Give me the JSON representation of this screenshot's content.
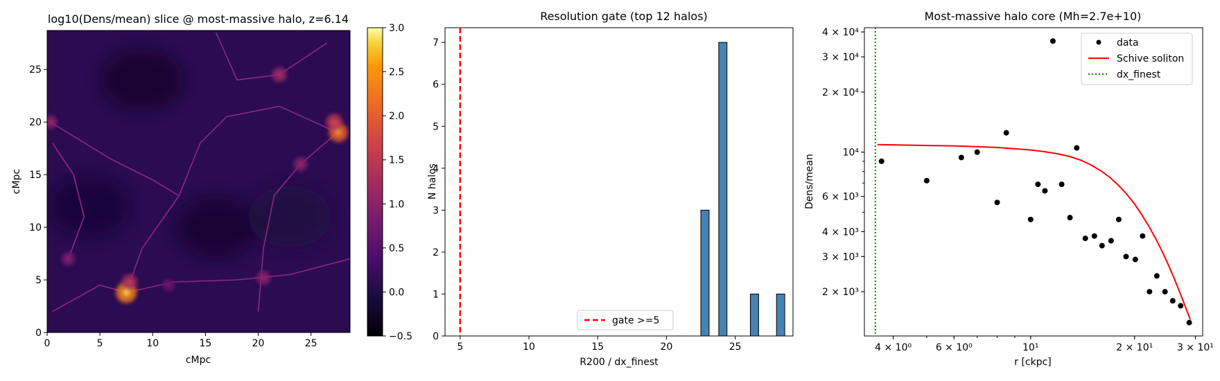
{
  "chart_data": [
    {
      "type": "heatmap",
      "title": "log10(Dens/mean) slice @ most-massive halo, z=6.14",
      "xlabel": "cMpc",
      "ylabel": "cMpc",
      "xlim": [
        0,
        28.7
      ],
      "ylim": [
        0,
        28.7
      ],
      "xticks": [
        0,
        5,
        10,
        15,
        20,
        25
      ],
      "yticks": [
        0,
        5,
        10,
        15,
        20,
        25
      ],
      "colorbar": {
        "colormap": "inferno",
        "range": [
          -0.5,
          3.0
        ],
        "ticks": [
          -0.5,
          0.0,
          0.5,
          1.0,
          1.5,
          2.0,
          2.5,
          3.0
        ],
        "tick_labels": [
          "−0.5",
          "0.0",
          "0.5",
          "1.0",
          "1.5",
          "2.0",
          "2.5",
          "3.0"
        ]
      },
      "background_color": "#2b0b52",
      "bright_spots": [
        {
          "x": 7.5,
          "y": 3.8,
          "value": 2.6
        },
        {
          "x": 7.8,
          "y": 4.8,
          "value": 1.4
        },
        {
          "x": 27.6,
          "y": 19.0,
          "value": 2.2
        },
        {
          "x": 27.2,
          "y": 20.0,
          "value": 1.6
        },
        {
          "x": 22.0,
          "y": 24.5,
          "value": 1.2
        },
        {
          "x": 20.5,
          "y": 5.2,
          "value": 1.0
        },
        {
          "x": 2.0,
          "y": 7.0,
          "value": 0.9
        },
        {
          "x": 0.3,
          "y": 20.0,
          "value": 1.0
        },
        {
          "x": 24.0,
          "y": 16.0,
          "value": 1.0
        },
        {
          "x": 11.5,
          "y": 4.5,
          "value": 0.7
        }
      ],
      "filaments": [
        [
          [
            0.5,
            2.0
          ],
          [
            5.0,
            4.5
          ],
          [
            7.5,
            3.8
          ],
          [
            12.0,
            4.8
          ],
          [
            18.0,
            5.0
          ],
          [
            23.0,
            5.5
          ],
          [
            28.7,
            7.0
          ]
        ],
        [
          [
            7.5,
            3.8
          ],
          [
            9.0,
            8.0
          ],
          [
            12.5,
            13.0
          ],
          [
            14.5,
            18.0
          ],
          [
            17.0,
            20.5
          ],
          [
            22.0,
            21.5
          ],
          [
            27.5,
            19.0
          ]
        ],
        [
          [
            0.3,
            20.0
          ],
          [
            6.0,
            16.5
          ],
          [
            10.0,
            14.5
          ],
          [
            12.5,
            13.0
          ]
        ],
        [
          [
            20.0,
            2.0
          ],
          [
            20.5,
            8.0
          ],
          [
            21.5,
            13.0
          ],
          [
            24.0,
            16.0
          ],
          [
            27.5,
            19.0
          ]
        ],
        [
          [
            16.0,
            28.5
          ],
          [
            18.0,
            24.0
          ],
          [
            22.0,
            24.5
          ],
          [
            26.5,
            27.5
          ]
        ],
        [
          [
            2.0,
            7.0
          ],
          [
            3.5,
            11.0
          ],
          [
            2.5,
            15.0
          ],
          [
            0.5,
            18.0
          ]
        ]
      ],
      "voids": [
        {
          "x": 9.0,
          "y": 24.0,
          "value": -0.3
        },
        {
          "x": 4.0,
          "y": 12.0,
          "value": -0.2
        },
        {
          "x": 16.0,
          "y": 10.0,
          "value": -0.25
        },
        {
          "x": 23.0,
          "y": 11.0,
          "value": -0.15
        }
      ]
    },
    {
      "type": "bar",
      "title": "Resolution gate (top 12 halos)",
      "xlabel": "R200 / dx_finest",
      "ylabel": "N halos",
      "xlim": [
        3.9,
        29.2
      ],
      "ylim": [
        0,
        7.35
      ],
      "xticks": [
        5,
        10,
        15,
        20,
        25
      ],
      "yticks": [
        0,
        1,
        2,
        3,
        4,
        5,
        6,
        7
      ],
      "bars": [
        {
          "x0": 22.5,
          "x1": 23.1,
          "value": 3
        },
        {
          "x0": 23.8,
          "x1": 24.4,
          "value": 7
        },
        {
          "x0": 26.1,
          "x1": 26.7,
          "value": 1
        },
        {
          "x0": 28.0,
          "x1": 28.6,
          "value": 1
        }
      ],
      "bar_color": "#4682b4",
      "vline": {
        "x": 5,
        "color": "#ff0000",
        "style": "dashed"
      },
      "legend": {
        "entries": [
          "gate >=5"
        ],
        "placement": "lower-center"
      }
    },
    {
      "type": "scatter",
      "title": "Most-massive halo core (Mh=2.7e+10)",
      "xlabel": "r [ckpc]",
      "ylabel": "Dens/mean",
      "xscale": "log",
      "yscale": "log",
      "xlim": [
        3.3,
        31.5
      ],
      "ylim": [
        1200,
        42000
      ],
      "xticks": [
        {
          "value": 4,
          "label": "4 × 10⁰"
        },
        {
          "value": 6,
          "label": "6 × 10⁰"
        },
        {
          "value": 10,
          "label": "10¹"
        },
        {
          "value": 20,
          "label": "2 × 10¹"
        },
        {
          "value": 30,
          "label": "3 × 10¹"
        }
      ],
      "yticks": [
        {
          "value": 2000,
          "label": "2 × 10³"
        },
        {
          "value": 3000,
          "label": "3 × 10³"
        },
        {
          "value": 4000,
          "label": "4 × 10³"
        },
        {
          "value": 6000,
          "label": "6 × 10³"
        },
        {
          "value": 10000,
          "label": "10⁴"
        },
        {
          "value": 20000,
          "label": "2 × 10⁴"
        },
        {
          "value": 30000,
          "label": "3 × 10⁴"
        },
        {
          "value": 40000,
          "label": "4 × 10⁴"
        }
      ],
      "series": [
        {
          "name": "data",
          "kind": "points",
          "color": "#000000",
          "x": [
            3.7,
            5.0,
            6.3,
            7.0,
            8.0,
            8.5,
            10.0,
            10.5,
            11.0,
            11.6,
            12.3,
            13.0,
            13.6,
            14.4,
            15.3,
            16.1,
            17.1,
            18.0,
            18.9,
            20.1,
            21.1,
            22.1,
            23.2,
            24.5,
            25.8,
            27.2,
            28.8
          ],
          "y": [
            9000,
            7200,
            9400,
            10000,
            5600,
            12500,
            4600,
            6900,
            6400,
            36000,
            6900,
            4700,
            10500,
            3700,
            3800,
            3400,
            3600,
            4600,
            3000,
            2900,
            3800,
            2000,
            2400,
            2000,
            1800,
            1700,
            1400
          ]
        },
        {
          "name": "Schive soliton",
          "kind": "line",
          "color": "#ff0000",
          "x": [
            3.6,
            5,
            6,
            7,
            8,
            9,
            10,
            11,
            12,
            13,
            14,
            15,
            16,
            17,
            18,
            19,
            20,
            21,
            22,
            23,
            24,
            25,
            26,
            27,
            28,
            29
          ],
          "y": [
            10900,
            10800,
            10750,
            10650,
            10550,
            10400,
            10250,
            10050,
            9800,
            9500,
            9100,
            8600,
            8050,
            7450,
            6800,
            6150,
            5500,
            4850,
            4250,
            3700,
            3200,
            2750,
            2350,
            2000,
            1700,
            1450
          ]
        },
        {
          "name": "dx_finest",
          "kind": "vline",
          "color": "#008000",
          "style": "dotted",
          "x": 3.55
        }
      ],
      "legend": {
        "entries": [
          "data",
          "Schive soliton",
          "dx_finest"
        ],
        "placement": "top-right"
      }
    }
  ]
}
